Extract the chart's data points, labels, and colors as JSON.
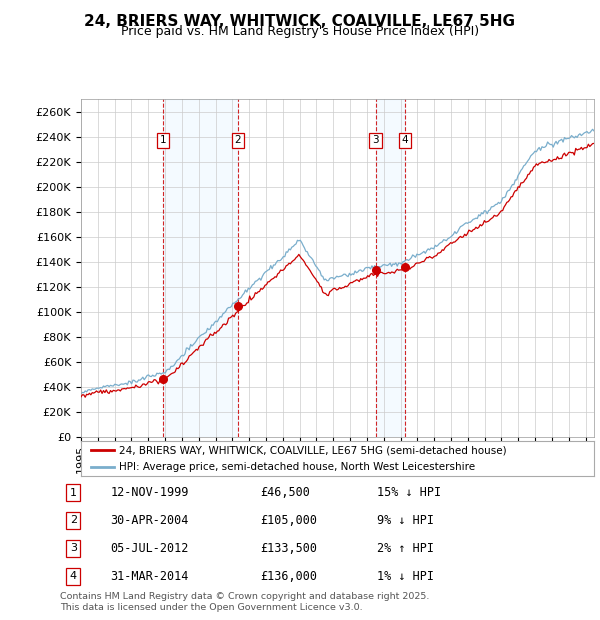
{
  "title": "24, BRIERS WAY, WHITWICK, COALVILLE, LE67 5HG",
  "subtitle": "Price paid vs. HM Land Registry's House Price Index (HPI)",
  "ylim": [
    0,
    270000
  ],
  "yticks": [
    0,
    20000,
    40000,
    60000,
    80000,
    100000,
    120000,
    140000,
    160000,
    180000,
    200000,
    220000,
    240000,
    260000
  ],
  "ytick_labels": [
    "£0",
    "£20K",
    "£40K",
    "£60K",
    "£80K",
    "£100K",
    "£120K",
    "£140K",
    "£160K",
    "£180K",
    "£200K",
    "£220K",
    "£240K",
    "£260K"
  ],
  "xlim_start": 1995.0,
  "xlim_end": 2025.5,
  "transactions": [
    {
      "num": 1,
      "date": "12-NOV-1999",
      "date_x": 1999.87,
      "price": 46500,
      "label": "15% ↓ HPI"
    },
    {
      "num": 2,
      "date": "30-APR-2004",
      "date_x": 2004.33,
      "price": 105000,
      "label": "9% ↓ HPI"
    },
    {
      "num": 3,
      "date": "05-JUL-2012",
      "date_x": 2012.51,
      "price": 133500,
      "label": "2% ↑ HPI"
    },
    {
      "num": 4,
      "date": "31-MAR-2014",
      "date_x": 2014.25,
      "price": 136000,
      "label": "1% ↓ HPI"
    }
  ],
  "line_color_red": "#cc0000",
  "line_color_blue": "#7aaecc",
  "grid_color": "#cccccc",
  "background_color": "#ffffff",
  "title_fontsize": 11,
  "subtitle_fontsize": 9,
  "tick_fontsize": 8,
  "legend_label_red": "24, BRIERS WAY, WHITWICK, COALVILLE, LE67 5HG (semi-detached house)",
  "legend_label_blue": "HPI: Average price, semi-detached house, North West Leicestershire",
  "footer": "Contains HM Land Registry data © Crown copyright and database right 2025.\nThis data is licensed under the Open Government Licence v3.0.",
  "table_rows": [
    [
      1,
      "12-NOV-1999",
      "£46,500",
      "15% ↓ HPI"
    ],
    [
      2,
      "30-APR-2004",
      "£105,000",
      "9% ↓ HPI"
    ],
    [
      3,
      "05-JUL-2012",
      "£133,500",
      "2% ↑ HPI"
    ],
    [
      4,
      "31-MAR-2014",
      "£136,000",
      "1% ↓ HPI"
    ]
  ]
}
